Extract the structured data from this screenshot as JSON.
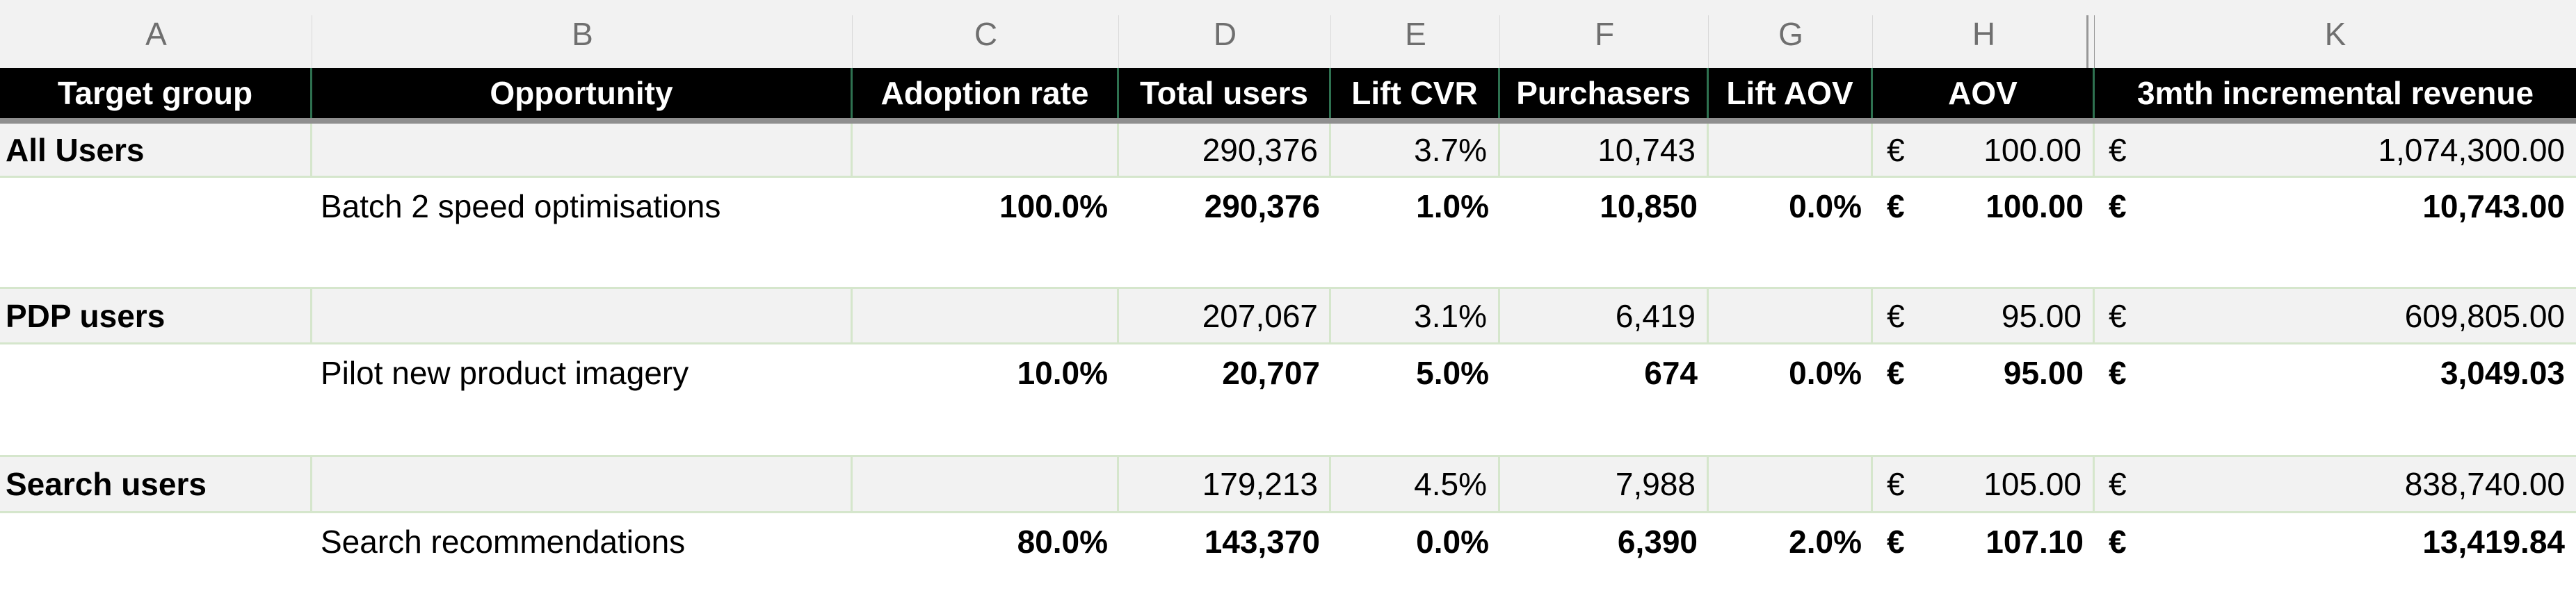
{
  "sheet": {
    "column_letters": [
      "A",
      "B",
      "C",
      "D",
      "E",
      "F",
      "G",
      "H",
      "K"
    ],
    "hidden_columns_note": "columns I and J hidden (double line between H and K)",
    "header": [
      "Target group",
      "Opportunity",
      "Adoption rate",
      "Total users",
      "Lift CVR",
      "Purchasers",
      "Lift AOV",
      "AOV",
      "3mth incremental revenue"
    ],
    "rows": [
      {
        "type": "group",
        "cells": {
          "target_group": "All Users",
          "opportunity": "",
          "adoption_rate": "",
          "total_users": "290,376",
          "lift_cvr": "3.7%",
          "purchasers": "10,743",
          "lift_aov": "",
          "aov_cur": "€",
          "aov": "100.00",
          "rev_cur": "€",
          "revenue": "1,074,300.00"
        }
      },
      {
        "type": "opportunity",
        "cells": {
          "target_group": "",
          "opportunity": "Batch 2 speed optimisations",
          "adoption_rate": "100.0%",
          "total_users": "290,376",
          "lift_cvr": "1.0%",
          "purchasers": "10,850",
          "lift_aov": "0.0%",
          "aov_cur": "€",
          "aov": "100.00",
          "rev_cur": "€",
          "revenue": "10,743.00"
        }
      },
      {
        "type": "spacer"
      },
      {
        "type": "group",
        "cells": {
          "target_group": "PDP users",
          "opportunity": "",
          "adoption_rate": "",
          "total_users": "207,067",
          "lift_cvr": "3.1%",
          "purchasers": "6,419",
          "lift_aov": "",
          "aov_cur": "€",
          "aov": "95.00",
          "rev_cur": "€",
          "revenue": "609,805.00"
        }
      },
      {
        "type": "opportunity",
        "cells": {
          "target_group": "",
          "opportunity": "Pilot new product imagery",
          "adoption_rate": "10.0%",
          "total_users": "20,707",
          "lift_cvr": "5.0%",
          "purchasers": "674",
          "lift_aov": "0.0%",
          "aov_cur": "€",
          "aov": "95.00",
          "rev_cur": "€",
          "revenue": "3,049.03"
        }
      },
      {
        "type": "spacer"
      },
      {
        "type": "group",
        "cells": {
          "target_group": "Search users",
          "opportunity": "",
          "adoption_rate": "",
          "total_users": "179,213",
          "lift_cvr": "4.5%",
          "purchasers": "7,988",
          "lift_aov": "",
          "aov_cur": "€",
          "aov": "105.00",
          "rev_cur": "€",
          "revenue": "838,740.00"
        }
      },
      {
        "type": "opportunity",
        "cells": {
          "target_group": "",
          "opportunity": "Search recommendations",
          "adoption_rate": "80.0%",
          "total_users": "143,370",
          "lift_cvr": "0.0%",
          "purchasers": "6,390",
          "lift_aov": "2.0%",
          "aov_cur": "€",
          "aov": "107.10",
          "rev_cur": "€",
          "revenue": "13,419.84"
        }
      }
    ],
    "colors": {
      "header_bg": "#000000",
      "header_text": "#ffffff",
      "header_separator_green": "#2e7150",
      "gridline_green": "#d5e6cc",
      "group_row_fill": "#f2f2f2",
      "divider_gray": "#8f8f8f",
      "letter_text": "#6f6f6f"
    }
  }
}
